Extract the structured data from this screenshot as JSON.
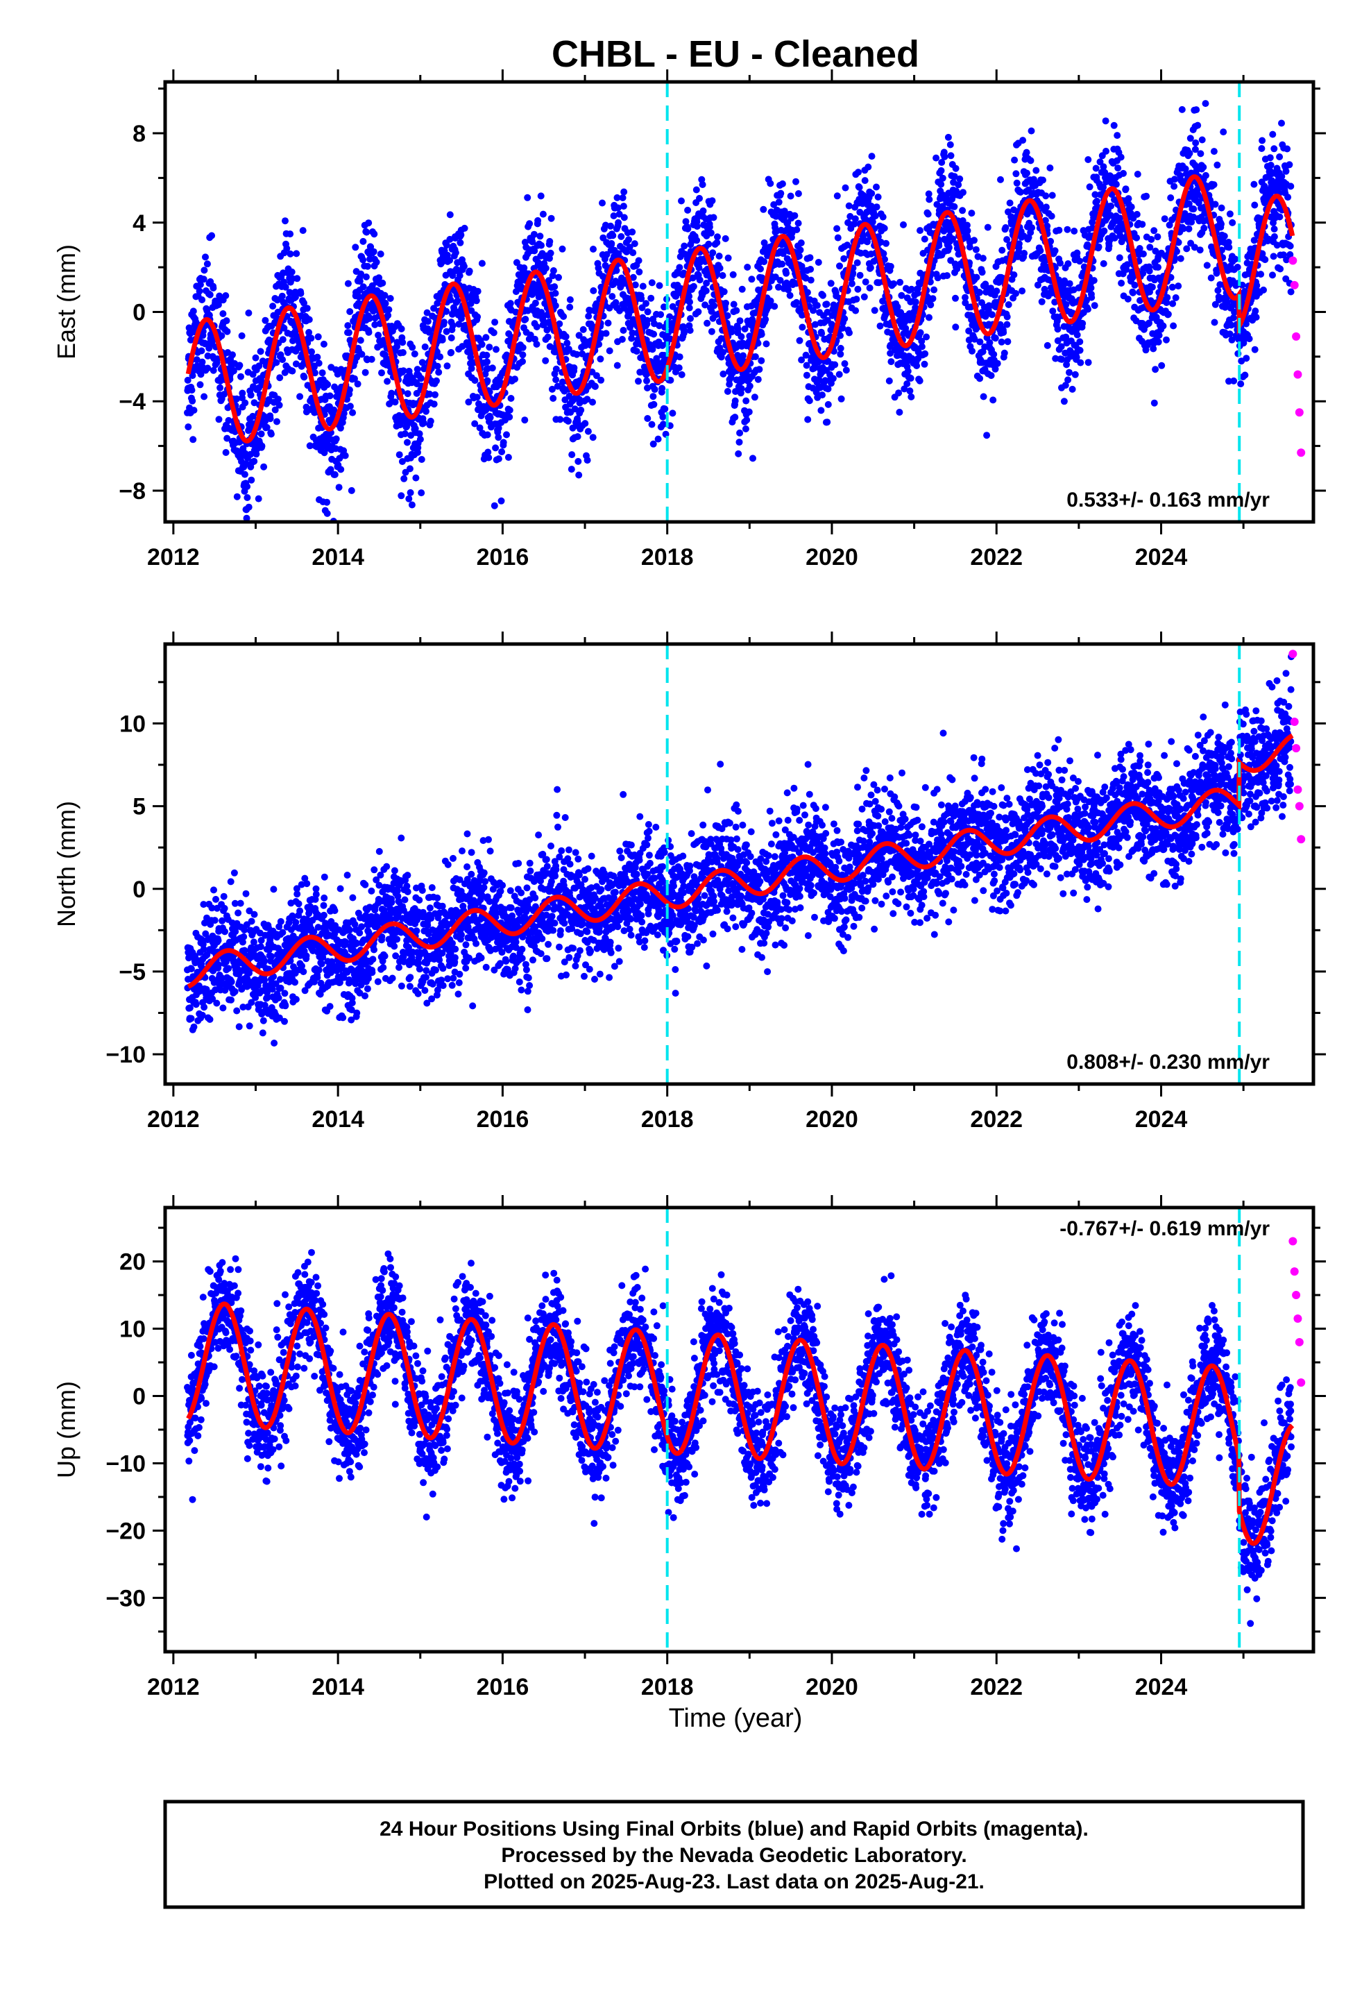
{
  "chart_data": {
    "type": "scatter",
    "title": "CHBL  - EU - Cleaned",
    "xlabel": "Time (year)",
    "x_ticks": [
      2012,
      2014,
      2016,
      2018,
      2020,
      2022,
      2024
    ],
    "xlim": [
      2011.9,
      2025.85
    ],
    "grid": false,
    "vertical_event_lines": [
      2018.0,
      2024.95
    ],
    "series_colors": {
      "final_orbits": "#0000ff",
      "rapid_orbits": "#ff00ff",
      "model_fit": "#ff0000",
      "event_lines": "#00e5ee"
    },
    "panels": [
      {
        "id": "east",
        "ylabel": "East (mm)",
        "ylim": [
          -9.4,
          10.3
        ],
        "y_ticks": [
          8,
          4,
          0,
          -4,
          -8
        ],
        "rate_label": "0.533+/- 0.163 mm/yr",
        "rate_label_position": "bottom-right",
        "fit": {
          "offset": -3.3,
          "trend": 0.533,
          "annual_amp": 2.85,
          "peak_phase": 0.4,
          "step_2024_95": -1.4
        },
        "scatter_sigma": 1.5,
        "rapid_points": {
          "x": [
            2025.6,
            2025.62,
            2025.64,
            2025.66,
            2025.68,
            2025.7
          ],
          "y": [
            2.3,
            1.2,
            -1.1,
            -2.8,
            -4.5,
            -6.3
          ]
        }
      },
      {
        "id": "north",
        "ylabel": "North (mm)",
        "ylim": [
          -11.8,
          14.8
        ],
        "y_ticks": [
          10,
          5,
          0,
          -5,
          -10
        ],
        "rate_label": "0.808+/- 0.230 mm/yr",
        "rate_label_position": "bottom-right",
        "fit": {
          "offset": -5.0,
          "trend": 0.808,
          "annual_amp": 0.9,
          "peak_phase": 0.65,
          "step_2024_95": 2.6
        },
        "scatter_sigma": 1.7,
        "rapid_points": {
          "x": [
            2025.6,
            2025.62,
            2025.64,
            2025.66,
            2025.68,
            2025.7
          ],
          "y": [
            14.2,
            10.1,
            8.5,
            6.0,
            5.0,
            3.0
          ]
        }
      },
      {
        "id": "up",
        "ylabel": "Up (mm)",
        "ylim": [
          -38.0,
          28.0
        ],
        "y_ticks": [
          20,
          10,
          0,
          -10,
          -20,
          -30
        ],
        "rate_label": "-0.767+/- 0.619 mm/yr",
        "rate_label_position": "top-right",
        "fit": {
          "offset": 5.0,
          "trend": -0.767,
          "annual_amp": 9.0,
          "peak_phase": 0.62,
          "step_2024_95": -8.0
        },
        "scatter_sigma": 4.0,
        "rapid_points": {
          "x": [
            2025.6,
            2025.62,
            2025.64,
            2025.66,
            2025.68,
            2025.7
          ],
          "y": [
            23.0,
            18.5,
            15.0,
            11.5,
            8.0,
            2.0
          ]
        }
      }
    ]
  },
  "footer": {
    "line1": "24 Hour Positions Using Final Orbits (blue) and Rapid Orbits (magenta).",
    "line2": "Processed by the Nevada Geodetic Laboratory.",
    "line3": "Plotted on 2025-Aug-23. Last data on 2025-Aug-21."
  }
}
